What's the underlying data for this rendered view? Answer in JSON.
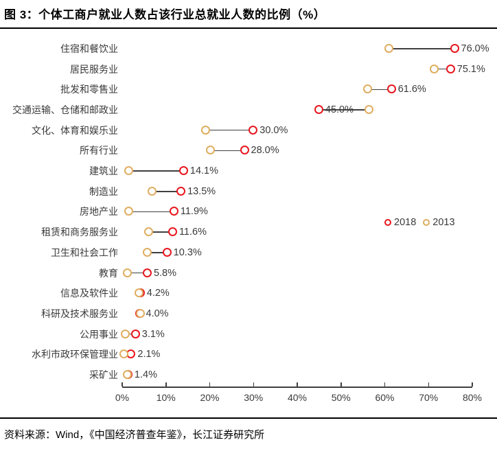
{
  "header": {
    "title": "图 3：个体工商户就业人数占该行业总就业人数的比例（%）"
  },
  "footer": {
    "source": "资料来源：Wind，《中国经济普查年鉴》，长江证券研究所"
  },
  "colors": {
    "red_2018": "#E8161E",
    "gold_2013": "#DFAD60",
    "connector": "#3F3F3F",
    "text": "#3A3A3A",
    "rule": "#000000"
  },
  "chart_data": {
    "type": "scatter",
    "subtype": "dumbbell_dot_plot",
    "title": "个体工商户就业人数占该行业总就业人数的比例（%）",
    "xlabel": "",
    "ylabel": "",
    "xlim": [
      0,
      80
    ],
    "grid": false,
    "legend_position": "middle-right",
    "x_ticks": [
      "0%",
      "10%",
      "20%",
      "30%",
      "40%",
      "50%",
      "60%",
      "70%",
      "80%"
    ],
    "categories": [
      "住宿和餐饮业",
      "居民服务业",
      "批发和零售业",
      "交通运输、仓储和邮政业",
      "文化、体育和娱乐业",
      "所有行业",
      "建筑业",
      "制造业",
      "房地产业",
      "租赁和商务服务业",
      "卫生和社会工作",
      "教育",
      "信息及软件业",
      "科研及技术服务业",
      "公用事业",
      "水利市政环保管理业",
      "采矿业"
    ],
    "series": [
      {
        "name": "2018",
        "color": "#E8161E",
        "values": [
          76.0,
          75.1,
          61.6,
          45.0,
          30.0,
          28.0,
          14.1,
          13.5,
          11.9,
          11.6,
          10.3,
          5.8,
          4.2,
          4.0,
          3.1,
          2.1,
          1.4
        ],
        "point_labels": [
          "76.0%",
          "75.1%",
          "61.6%",
          "45.0%",
          "30.0%",
          "28.0%",
          "14.1%",
          "13.5%",
          "11.9%",
          "11.6%",
          "10.3%",
          "5.8%",
          "4.2%",
          "4.0%",
          "3.1%",
          "2.1%",
          "1.4%"
        ]
      },
      {
        "name": "2013",
        "color": "#DFAD60",
        "values": [
          61.0,
          71.3,
          56.2,
          56.5,
          19.2,
          20.2,
          1.6,
          6.9,
          1.5,
          6.1,
          5.8,
          1.3,
          3.9,
          4.3,
          0.8,
          0.5,
          1.2
        ],
        "point_labels": []
      }
    ]
  }
}
